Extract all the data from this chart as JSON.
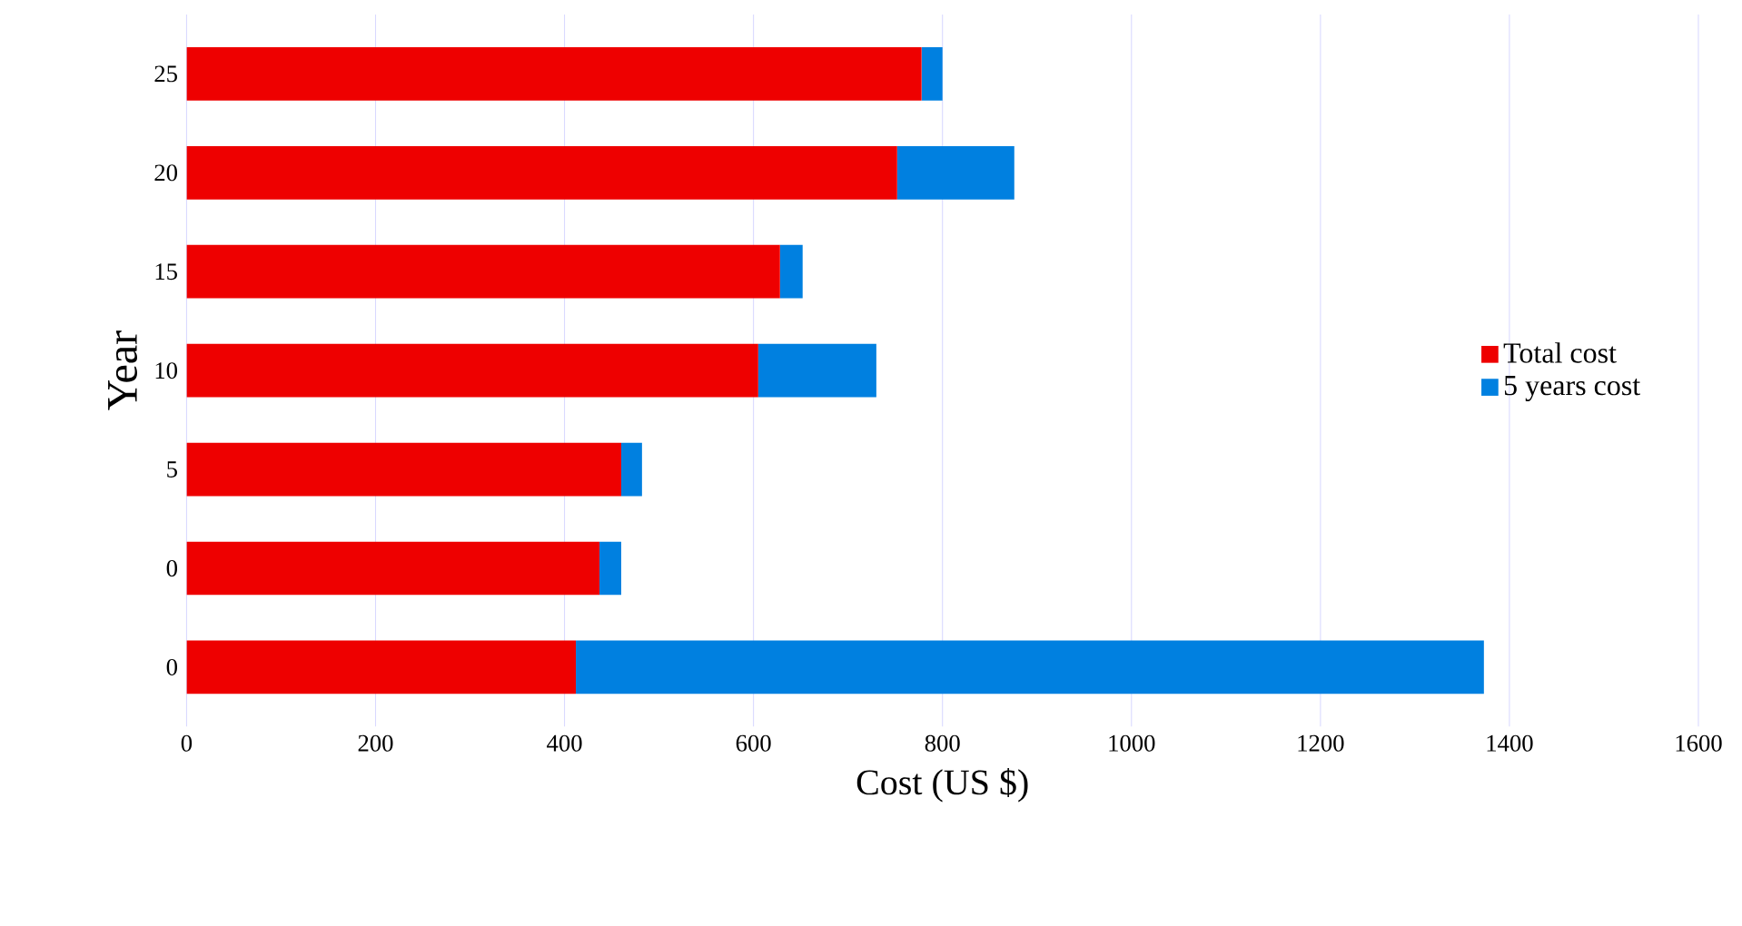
{
  "chart_data": {
    "type": "bar",
    "orientation": "horizontal",
    "stacked": true,
    "xlabel": "Cost (US $)",
    "ylabel": "Year",
    "categories": [
      "25",
      "20",
      "15",
      "10",
      "5",
      "0",
      "0"
    ],
    "series": [
      {
        "name": "Total cost",
        "color": "#ee0000",
        "values": [
          778,
          752,
          628,
          605,
          460,
          437,
          412
        ]
      },
      {
        "name": "5 years cost",
        "color": "#0080e0",
        "values": [
          22,
          124,
          24,
          125,
          22,
          23,
          961
        ]
      }
    ],
    "xlim": [
      0,
      1600
    ],
    "xticks": [
      0,
      200,
      400,
      600,
      800,
      1000,
      1200,
      1400,
      1600
    ],
    "grid": "x",
    "legend": "right"
  }
}
